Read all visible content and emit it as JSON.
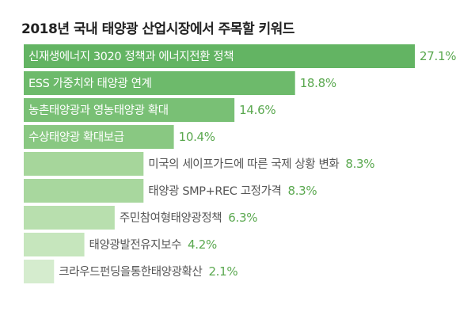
{
  "chart_data": {
    "type": "bar",
    "orientation": "horizontal",
    "title": "2018년 국내 태양광 산업시장에서 주목할 키워드",
    "unit": "%",
    "categories": [
      "신재생에너지 3020 정책과 에너지전환  정책",
      "ESS 가중치와 태양광 연계",
      "농촌태양광과 영농태양광 확대",
      "수상태양광 확대보급",
      "미국의 세이프가드에 따른 국제 상황 변화",
      "태양광 SMP+REC 고정가격",
      "주민참여형태양광정책",
      "태양광발전유지보수",
      "크라우드펀딩을통한태양광확산"
    ],
    "values": [
      27.1,
      18.8,
      14.6,
      10.4,
      8.3,
      8.3,
      6.3,
      4.2,
      2.1
    ],
    "value_labels": [
      "27.1%",
      "18.8%",
      "14.6%",
      "10.4%",
      "8.3%",
      "8.3%",
      "6.3%",
      "4.2%",
      "2.1%"
    ],
    "colors": {
      "bars": [
        "#63b463",
        "#6dba6b",
        "#79c075",
        "#89c882",
        "#a6d69b",
        "#a8d79e",
        "#b8dfae",
        "#c6e6bd",
        "#d5ecce"
      ],
      "value_text": "#5aa84f",
      "label_on_bar": "#ffffff",
      "label_off_bar": "#555555"
    }
  }
}
